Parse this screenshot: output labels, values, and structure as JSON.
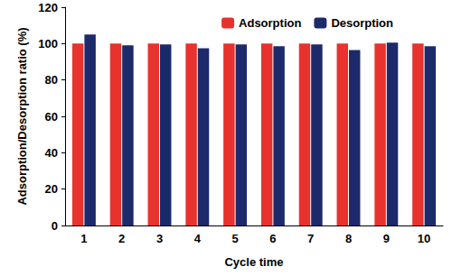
{
  "chart_data": {
    "type": "bar",
    "x_label": "Cycle time",
    "y_label": "Adsorption/Desorption ratio (%)",
    "categories": [
      "1",
      "2",
      "3",
      "4",
      "5",
      "6",
      "7",
      "8",
      "9",
      "10"
    ],
    "series": [
      {
        "name": "Adsorption",
        "color": "#e8322e",
        "values": [
          100,
          100,
          100,
          100,
          100,
          100,
          100,
          100,
          100,
          100
        ]
      },
      {
        "name": "Desorption",
        "color": "#1c2a6b",
        "values": [
          105,
          99,
          99.5,
          97.5,
          99.5,
          98.5,
          99.5,
          96.5,
          100.5,
          98.5
        ]
      }
    ],
    "ylim": [
      0,
      120
    ],
    "yticks": [
      0,
      20,
      40,
      60,
      80,
      100,
      120
    ],
    "grid": false,
    "legend": "upper right"
  }
}
